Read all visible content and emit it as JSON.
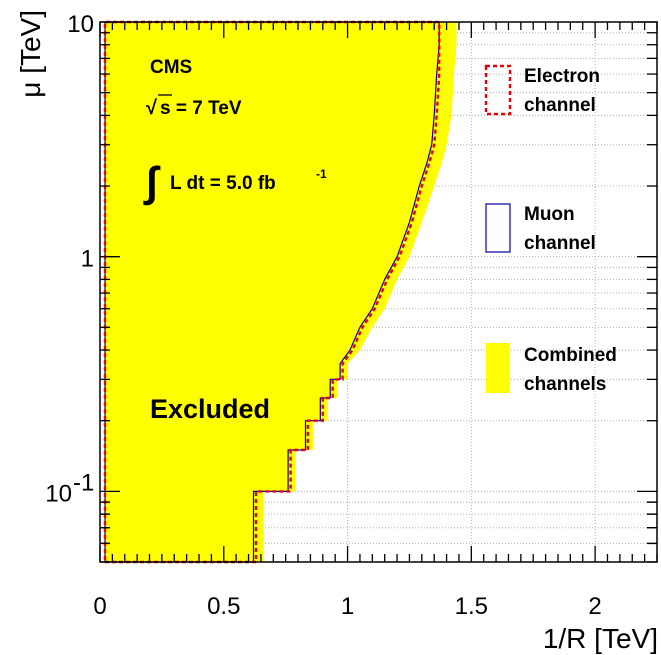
{
  "chart_data": {
    "type": "area",
    "xlabel": "1/R [TeV]",
    "ylabel": "μ [TeV]",
    "xlim": [
      0,
      2.25
    ],
    "ylim": [
      0.05,
      10
    ],
    "y_scale": "log",
    "grid": true,
    "x_tick_labels": [
      "0",
      "0.5",
      "1",
      "1.5",
      "2"
    ],
    "x_tick_values": [
      0,
      0.5,
      1,
      1.5,
      2
    ],
    "y_tick_labels": [
      {
        "mantissa": "10",
        "exponent": "-1",
        "value": 0.1
      },
      {
        "mantissa": "1",
        "exponent": "",
        "value": 1
      },
      {
        "mantissa": "10",
        "exponent": "",
        "value": 10
      }
    ],
    "annotations": {
      "experiment": "CMS",
      "sqrt_symbol": "√",
      "energy": "s = 7 TeV",
      "integral_symbol": "∫",
      "lumi": "L dt = 5.0 fb",
      "lumi_exponent": "-1",
      "excluded": "Excluded"
    },
    "legend_position": "right",
    "series": [
      {
        "name": "Combined channels",
        "color": "#ffff00",
        "points": [
          [
            0.02,
            0.05
          ],
          [
            0.66,
            0.05
          ],
          [
            0.66,
            0.1
          ],
          [
            0.79,
            0.1
          ],
          [
            0.79,
            0.15
          ],
          [
            0.86,
            0.15
          ],
          [
            0.86,
            0.2
          ],
          [
            0.92,
            0.2
          ],
          [
            0.92,
            0.25
          ],
          [
            0.96,
            0.25
          ],
          [
            0.96,
            0.3
          ],
          [
            1.0,
            0.3
          ],
          [
            1.0,
            0.35
          ],
          [
            1.05,
            0.4
          ],
          [
            1.1,
            0.5
          ],
          [
            1.15,
            0.6
          ],
          [
            1.2,
            0.8
          ],
          [
            1.25,
            1.0
          ],
          [
            1.3,
            1.4
          ],
          [
            1.35,
            2.0
          ],
          [
            1.38,
            2.5
          ],
          [
            1.4,
            3.0
          ],
          [
            1.42,
            4.0
          ],
          [
            1.43,
            6.0
          ],
          [
            1.44,
            8.0
          ],
          [
            1.44,
            10.0
          ],
          [
            0.02,
            10.0
          ]
        ]
      },
      {
        "name": "Muon channel",
        "color": "#0000aa",
        "points": [
          [
            0.02,
            0.05
          ],
          [
            0.62,
            0.05
          ],
          [
            0.62,
            0.1
          ],
          [
            0.76,
            0.1
          ],
          [
            0.76,
            0.15
          ],
          [
            0.83,
            0.15
          ],
          [
            0.83,
            0.2
          ],
          [
            0.89,
            0.2
          ],
          [
            0.89,
            0.25
          ],
          [
            0.93,
            0.25
          ],
          [
            0.93,
            0.3
          ],
          [
            0.97,
            0.3
          ],
          [
            0.97,
            0.35
          ],
          [
            1.01,
            0.4
          ],
          [
            1.05,
            0.5
          ],
          [
            1.1,
            0.6
          ],
          [
            1.15,
            0.8
          ],
          [
            1.2,
            1.0
          ],
          [
            1.25,
            1.4
          ],
          [
            1.29,
            2.0
          ],
          [
            1.32,
            2.5
          ],
          [
            1.34,
            3.0
          ],
          [
            1.35,
            4.0
          ],
          [
            1.36,
            6.0
          ],
          [
            1.37,
            8.0
          ],
          [
            1.37,
            10.0
          ],
          [
            0.02,
            10.0
          ]
        ]
      },
      {
        "name": "Electron channel",
        "color": "#e8000b",
        "dashed": true,
        "points": [
          [
            0.02,
            0.05
          ],
          [
            0.63,
            0.05
          ],
          [
            0.63,
            0.1
          ],
          [
            0.77,
            0.1
          ],
          [
            0.77,
            0.15
          ],
          [
            0.84,
            0.15
          ],
          [
            0.84,
            0.2
          ],
          [
            0.9,
            0.2
          ],
          [
            0.9,
            0.25
          ],
          [
            0.94,
            0.25
          ],
          [
            0.94,
            0.3
          ],
          [
            0.98,
            0.3
          ],
          [
            0.98,
            0.35
          ],
          [
            1.02,
            0.4
          ],
          [
            1.06,
            0.5
          ],
          [
            1.11,
            0.6
          ],
          [
            1.16,
            0.8
          ],
          [
            1.21,
            1.0
          ],
          [
            1.26,
            1.4
          ],
          [
            1.3,
            2.0
          ],
          [
            1.33,
            2.5
          ],
          [
            1.35,
            3.0
          ],
          [
            1.36,
            4.0
          ],
          [
            1.37,
            6.0
          ],
          [
            1.37,
            8.0
          ],
          [
            1.37,
            10.0
          ],
          [
            0.02,
            10.0
          ]
        ]
      }
    ],
    "legend": [
      {
        "line1": "Electron",
        "line2": "channel",
        "style": "dashed-red"
      },
      {
        "line1": "Muon",
        "line2": "channel",
        "style": "blue-outline"
      },
      {
        "line1": "Combined",
        "line2": "channels",
        "style": "yellow-fill"
      }
    ]
  }
}
